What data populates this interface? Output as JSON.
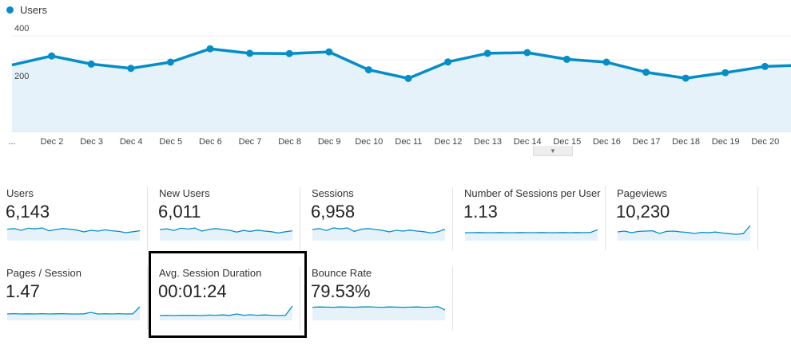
{
  "legend": {
    "label": "Users",
    "color": "#058dc7"
  },
  "chart_data": {
    "type": "area",
    "series": [
      {
        "name": "Users",
        "values": [
          278,
          316,
          282,
          264,
          290,
          346,
          327,
          326,
          333,
          258,
          222,
          291,
          327,
          330,
          302,
          290,
          248,
          223,
          246,
          272,
          278
        ]
      }
    ],
    "x_tick_labels": [
      "...",
      "Dec 2",
      "Dec 3",
      "Dec 4",
      "Dec 5",
      "Dec 6",
      "Dec 7",
      "Dec 8",
      "Dec 9",
      "Dec 10",
      "Dec 11",
      "Dec 12",
      "Dec 13",
      "Dec 14",
      "Dec 15",
      "Dec 16",
      "Dec 17",
      "Dec 18",
      "Dec 19",
      "Dec 20"
    ],
    "y_ticks": [
      "400",
      "200"
    ],
    "ylim": [
      0,
      400
    ],
    "line_color": "#058dc7",
    "fill_color": "#e5f2fa",
    "grid": true
  },
  "handle_icon": "chevron-down-icon",
  "metrics": [
    {
      "label": "Users",
      "value": "6,143",
      "spark": [
        0.62,
        0.66,
        0.55,
        0.68,
        0.64,
        0.7,
        0.52,
        0.6,
        0.66,
        0.62,
        0.56,
        0.45,
        0.55,
        0.5,
        0.58,
        0.52,
        0.48,
        0.4,
        0.46,
        0.52
      ]
    },
    {
      "label": "New Users",
      "value": "6,011",
      "spark": [
        0.6,
        0.64,
        0.54,
        0.68,
        0.63,
        0.69,
        0.5,
        0.6,
        0.66,
        0.6,
        0.55,
        0.44,
        0.54,
        0.48,
        0.56,
        0.5,
        0.46,
        0.38,
        0.46,
        0.52
      ]
    },
    {
      "label": "Sessions",
      "value": "6,958",
      "spark": [
        0.6,
        0.66,
        0.54,
        0.7,
        0.64,
        0.7,
        0.48,
        0.62,
        0.66,
        0.6,
        0.55,
        0.45,
        0.55,
        0.5,
        0.56,
        0.5,
        0.46,
        0.38,
        0.46,
        0.62
      ]
    },
    {
      "label": "Number of Sessions per User",
      "value": "1.13",
      "spark": [
        0.4,
        0.4,
        0.41,
        0.4,
        0.4,
        0.41,
        0.4,
        0.4,
        0.41,
        0.4,
        0.4,
        0.41,
        0.4,
        0.4,
        0.41,
        0.4,
        0.41,
        0.4,
        0.42,
        0.58
      ]
    },
    {
      "label": "Pageviews",
      "value": "10,230",
      "spark": [
        0.45,
        0.5,
        0.4,
        0.48,
        0.5,
        0.52,
        0.35,
        0.48,
        0.5,
        0.45,
        0.42,
        0.35,
        0.42,
        0.4,
        0.44,
        0.38,
        0.34,
        0.3,
        0.34,
        0.85
      ]
    },
    {
      "label": "Pages / Session",
      "value": "1.47",
      "spark": [
        0.3,
        0.32,
        0.3,
        0.31,
        0.3,
        0.32,
        0.3,
        0.31,
        0.32,
        0.3,
        0.3,
        0.31,
        0.4,
        0.3,
        0.31,
        0.3,
        0.32,
        0.3,
        0.31,
        0.75
      ]
    },
    {
      "label": "Avg. Session Duration",
      "value": "00:01:24",
      "spark": [
        0.2,
        0.22,
        0.2,
        0.22,
        0.21,
        0.22,
        0.2,
        0.23,
        0.22,
        0.24,
        0.21,
        0.3,
        0.22,
        0.25,
        0.22,
        0.24,
        0.22,
        0.2,
        0.22,
        0.8
      ]
    },
    {
      "label": "Bounce Rate",
      "value": "79.53%",
      "spark": [
        0.72,
        0.74,
        0.73,
        0.72,
        0.74,
        0.73,
        0.72,
        0.74,
        0.75,
        0.73,
        0.72,
        0.74,
        0.73,
        0.72,
        0.73,
        0.74,
        0.72,
        0.73,
        0.76,
        0.55
      ]
    }
  ]
}
